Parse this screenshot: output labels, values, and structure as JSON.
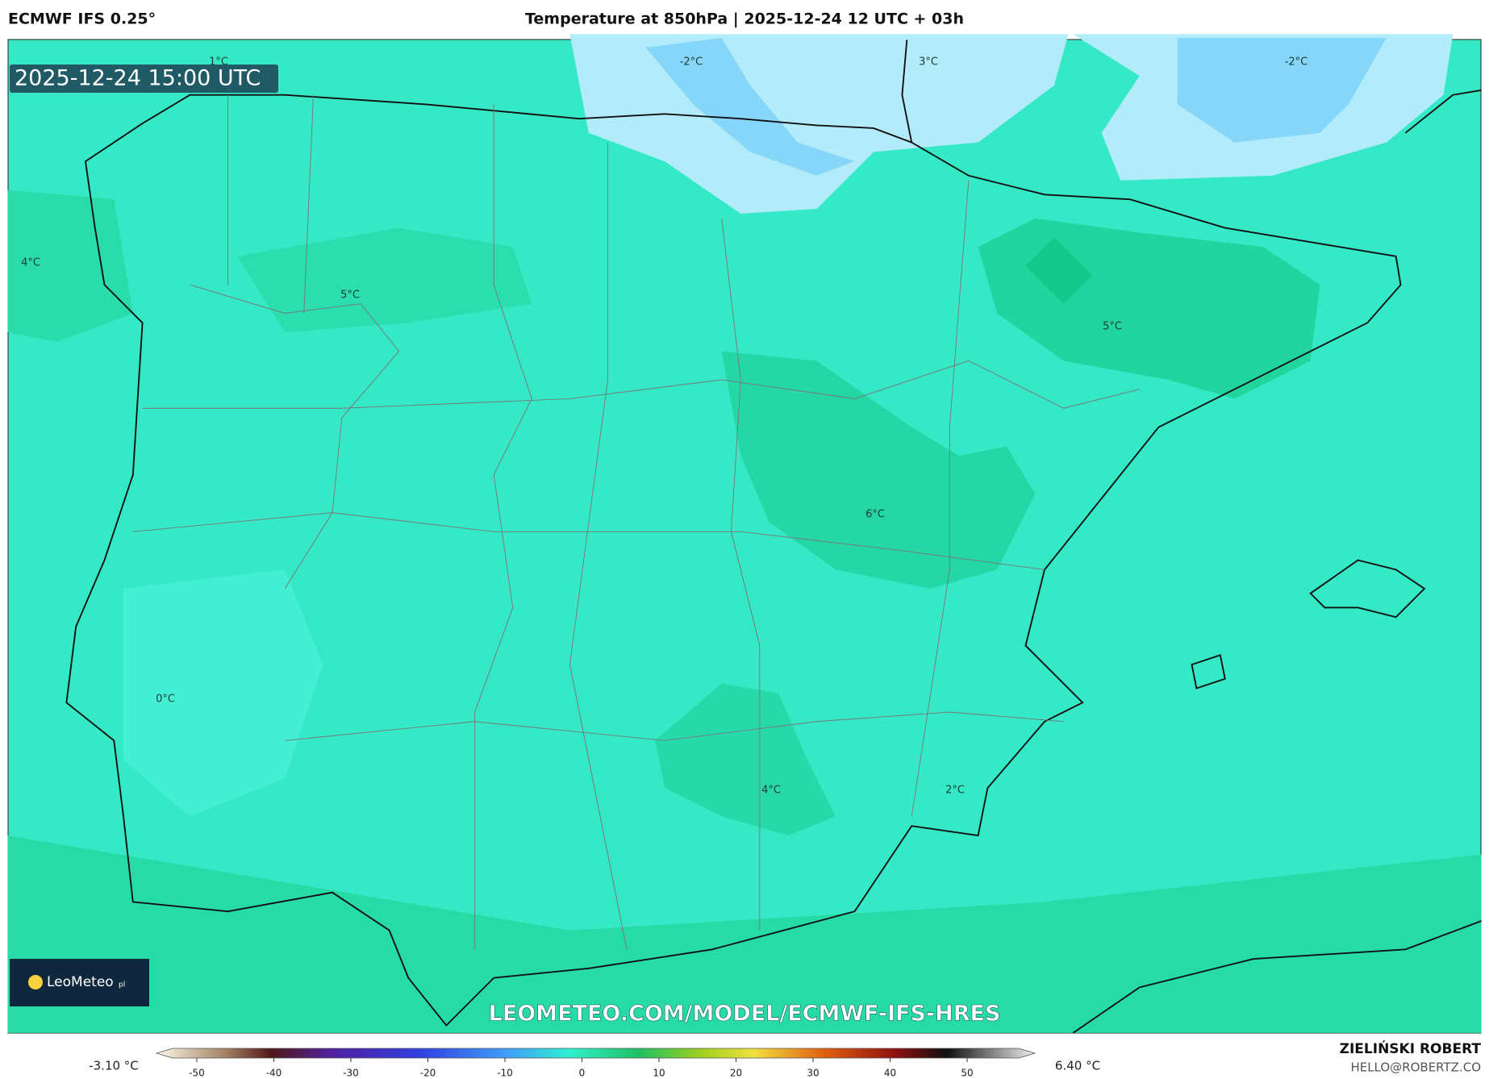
{
  "header": {
    "model": "ECMWF IFS 0.25°",
    "title": "Temperature at 850hPa | 2025-12-24 12 UTC + 03h"
  },
  "map": {
    "timestamp": "2025-12-24 15:00 UTC",
    "contour_labels": [
      "1°C",
      "-2°C",
      "3°C",
      "-2°C",
      "4°C",
      "5°C",
      "5°C",
      "6°C",
      "0°C",
      "4°C",
      "2°C"
    ],
    "logo": "LeoMeteo",
    "logo_suffix": "pl",
    "watermark": "LEOMETEO.COM/MODEL/ECMWF-IFS-HRES"
  },
  "colorbar": {
    "min_label": "-3.10 °C",
    "max_label": "6.40 °C",
    "ticks": [
      -50,
      -40,
      -30,
      -20,
      -10,
      0,
      10,
      20,
      30,
      40,
      50
    ]
  },
  "footer": {
    "author": "ZIELIŃSKI ROBERT",
    "email": "HELLO@ROBERTZ.CO"
  }
}
